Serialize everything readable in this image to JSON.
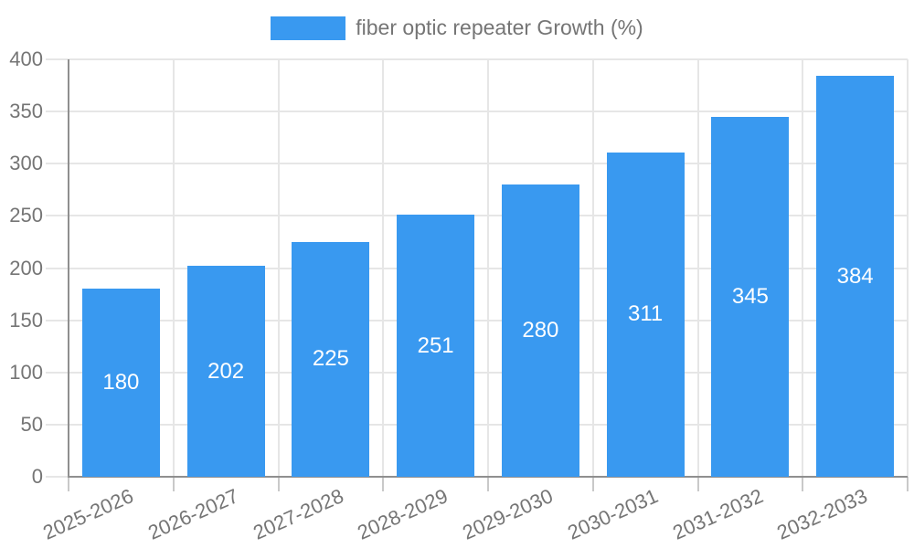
{
  "chart_data": {
    "type": "bar",
    "title": "",
    "legend": "fiber optic repeater Growth (%)",
    "legend_position": "top",
    "categories": [
      "2025-2026",
      "2026-2027",
      "2027-2028",
      "2028-2029",
      "2029-2030",
      "2030-2031",
      "2031-2032",
      "2032-2033"
    ],
    "values": [
      180,
      202,
      225,
      251,
      280,
      311,
      345,
      384
    ],
    "xlabel": "",
    "ylabel": "",
    "ylim": [
      0,
      400
    ],
    "yticks": [
      0,
      50,
      100,
      150,
      200,
      250,
      300,
      350,
      400
    ],
    "grid": true,
    "bar_value_label_position": "center",
    "colors": {
      "bar": "#3999f0",
      "bar_value_label": "#ffffff",
      "axis_text": "#757575",
      "grid_line": "#e6e6e6",
      "tick_line": "#c9c9c9",
      "axis_line": "#8f8f8f",
      "background": "#ffffff"
    }
  }
}
